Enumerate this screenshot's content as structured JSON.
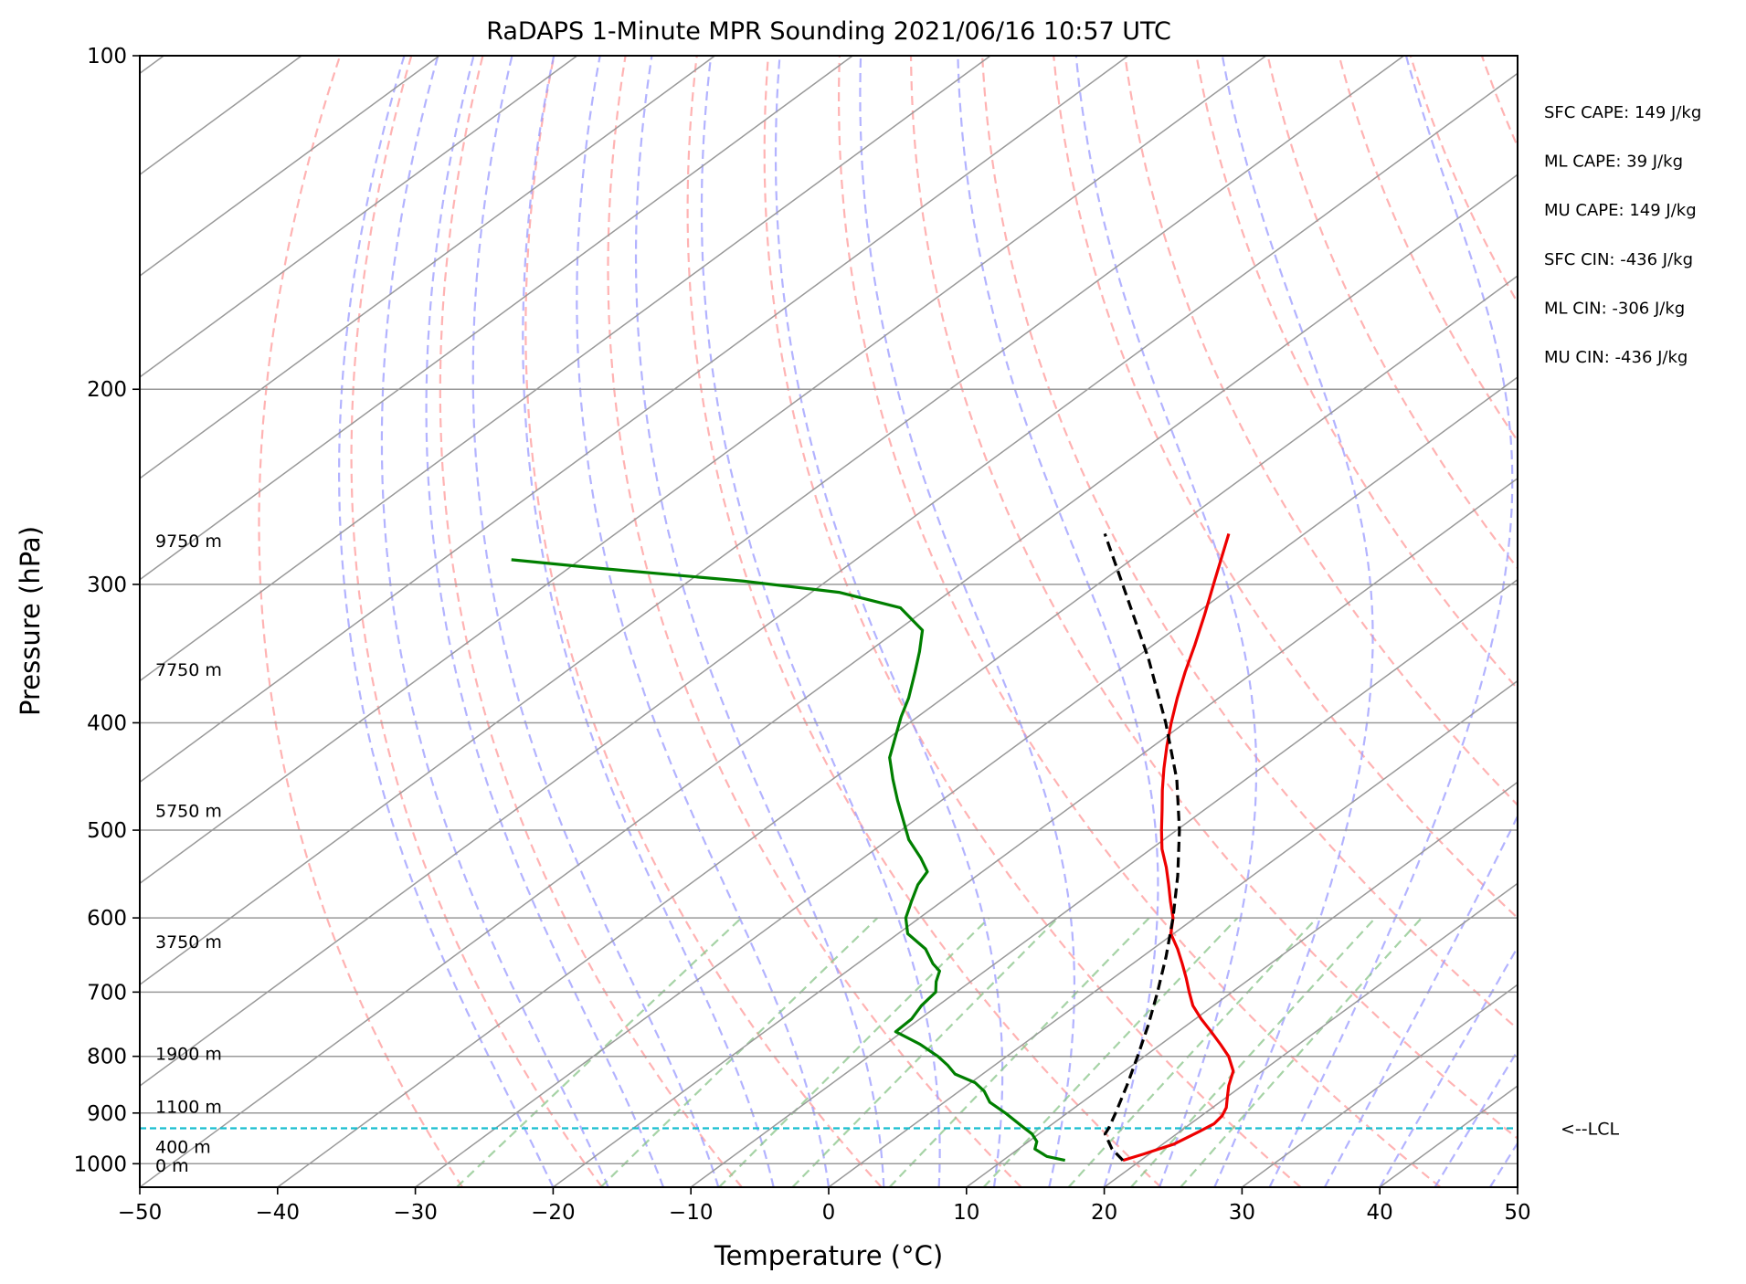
{
  "chart_data": {
    "type": "line",
    "subtype": "skew-t log-p",
    "title": "RaDAPS 1-Minute MPR Sounding 2021/06/16 10:57 UTC",
    "xlabel": "Temperature (°C)",
    "ylabel": "Pressure (hPa)",
    "xlim": [
      -50,
      50
    ],
    "ylim": [
      1050,
      100
    ],
    "y_scale": "log",
    "x_ticks": [
      "−50",
      "−40",
      "−30",
      "−20",
      "−10",
      "0",
      "10",
      "20",
      "30",
      "40",
      "50"
    ],
    "y_ticks": [
      "100",
      "200",
      "300",
      "400",
      "500",
      "600",
      "700",
      "800",
      "900",
      "1000"
    ],
    "grid": true,
    "colors": {
      "temperature": "#ee0000",
      "dewpoint": "#007f00",
      "parcel": "#000000",
      "dry_adiabats": "#ff9999",
      "moist_adiabats": "#9999ff",
      "mixing_ratio": "#88c488",
      "isotherms": "#999999",
      "lcl_line": "#17becf"
    },
    "series": [
      {
        "key": "temperature",
        "p": [
          993,
          980,
          960,
          935,
          920,
          905,
          890,
          870,
          850,
          825,
          800,
          780,
          760,
          740,
          720,
          700,
          680,
          660,
          640,
          620,
          600,
          580,
          560,
          540,
          520,
          500,
          480,
          460,
          440,
          420,
          400,
          380,
          360,
          340,
          320,
          300,
          285,
          270
        ],
        "t": [
          18.7,
          19.6,
          20.8,
          21.4,
          21.7,
          21.5,
          21.0,
          20.0,
          19.0,
          17.9,
          16.1,
          14.3,
          12.4,
          10.4,
          8.5,
          6.9,
          5.3,
          3.6,
          1.8,
          -0.2,
          -1.6,
          -3.4,
          -5.2,
          -7.1,
          -9.2,
          -11.1,
          -13.0,
          -15.0,
          -17.0,
          -19.0,
          -21.0,
          -23.0,
          -25.0,
          -27.0,
          -29.2,
          -31.6,
          -33.5,
          -35.5
        ]
      },
      {
        "key": "dewpoint",
        "p": [
          993,
          985,
          970,
          955,
          940,
          925,
          900,
          880,
          860,
          845,
          830,
          815,
          800,
          780,
          760,
          740,
          720,
          700,
          685,
          670,
          660,
          640,
          620,
          600,
          580,
          560,
          545,
          530,
          510,
          490,
          470,
          450,
          430,
          410,
          395,
          380,
          360,
          345,
          330,
          315,
          305,
          298,
          290,
          285
        ],
        "t": [
          14.5,
          12.8,
          11.2,
          10.6,
          9.5,
          8.0,
          5.5,
          3.3,
          1.8,
          0.3,
          -2.0,
          -3.4,
          -5.0,
          -7.5,
          -10.5,
          -10.6,
          -11.2,
          -11.5,
          -12.5,
          -13.3,
          -14.5,
          -16.5,
          -19.3,
          -21.0,
          -22.2,
          -23.4,
          -24.0,
          -25.8,
          -28.5,
          -30.8,
          -33.2,
          -35.6,
          -38.0,
          -39.8,
          -41.2,
          -42.5,
          -44.6,
          -46.3,
          -48.2,
          -52.0,
          -58.0,
          -66.0,
          -78.0,
          -85.0
        ]
      },
      {
        "key": "parcel",
        "p": [
          993,
          970,
          940,
          929,
          900,
          850,
          800,
          750,
          700,
          650,
          600,
          550,
          500,
          450,
          400,
          350,
          300,
          270
        ],
        "t": [
          18.7,
          16.8,
          14.8,
          14.5,
          13.5,
          11.6,
          9.5,
          7.2,
          4.6,
          1.7,
          -1.6,
          -5.4,
          -9.8,
          -15.0,
          -21.4,
          -29.0,
          -38.2,
          -44.5
        ]
      }
    ],
    "lcl_pressure": 929,
    "lcl_label": "<--LCL",
    "height_labels": [
      {
        "text": "9750 m",
        "p": 274
      },
      {
        "text": "7750 m",
        "p": 358
      },
      {
        "text": "5750 m",
        "p": 480
      },
      {
        "text": "3750 m",
        "p": 630
      },
      {
        "text": "1900 m",
        "p": 795
      },
      {
        "text": "1100 m",
        "p": 888
      },
      {
        "text": "400 m",
        "p": 965
      },
      {
        "text": "0 m",
        "p": 1003
      }
    ],
    "annotations": [
      "SFC CAPE: 149 J/kg",
      "ML CAPE: 39 J/kg",
      "MU CAPE: 149 J/kg",
      "SFC CIN: -436 J/kg",
      "ML CIN: -306 J/kg",
      "MU CIN: -436 J/kg"
    ]
  }
}
